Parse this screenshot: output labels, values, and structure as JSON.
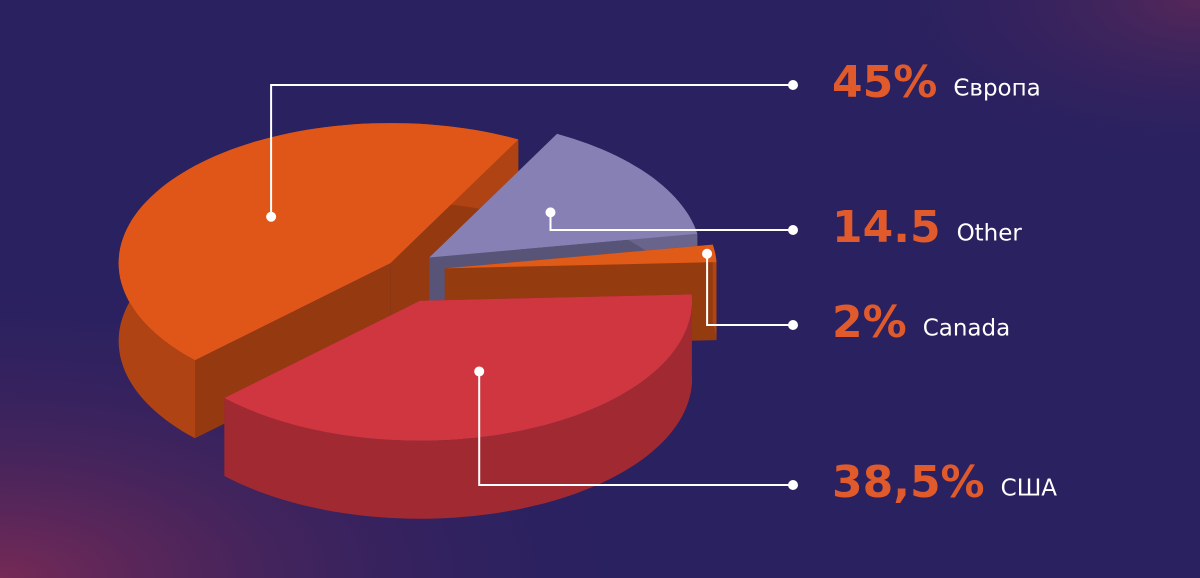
{
  "chart_data": {
    "type": "pie",
    "categories": [
      "Європа",
      "Other",
      "Canada",
      "США"
    ],
    "values": [
      45,
      14.5,
      2,
      38.5
    ],
    "value_labels": [
      "45%",
      "14.5",
      "2%",
      "38,5%"
    ],
    "colors": [
      "#e05618",
      "#8680b4",
      "#e05a18",
      "#cf3640"
    ]
  }
}
